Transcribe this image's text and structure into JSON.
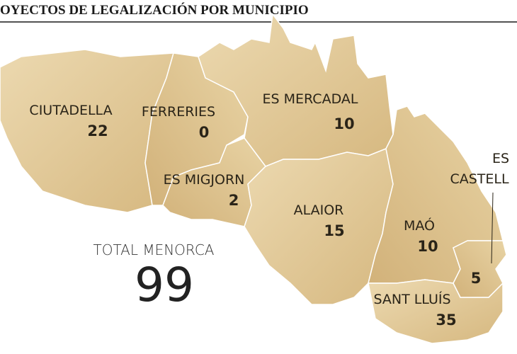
{
  "header": {
    "title": "OYECTOS DE LEGALIZACIÓN POR MUNICIPIO"
  },
  "municipalities": [
    {
      "name": "CIUTADELLA",
      "value": "22"
    },
    {
      "name": "FERRERIES",
      "value": "0"
    },
    {
      "name": "ES MERCADAL",
      "value": "10"
    },
    {
      "name": "ES MIGJORN",
      "value": "2"
    },
    {
      "name": "ALAIOR",
      "value": "15"
    },
    {
      "name": "MAÓ",
      "value": "10"
    },
    {
      "name": [
        "ES",
        "CASTELL"
      ],
      "value": "5"
    },
    {
      "name": "SANT LLUÍS",
      "value": "35"
    }
  ],
  "total": {
    "label": "TOTAL MENORCA",
    "value": "99"
  }
}
